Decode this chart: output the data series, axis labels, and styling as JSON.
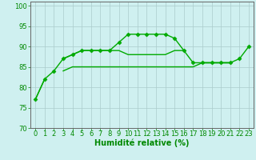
{
  "series": [
    {
      "y": [
        77,
        82,
        84,
        87,
        88,
        89,
        89,
        89,
        89,
        91,
        93,
        93,
        93,
        93,
        93,
        92,
        89,
        86,
        86,
        86,
        86,
        86,
        87,
        90
      ],
      "marker": "D",
      "color": "#00aa00",
      "linewidth": 1.0,
      "markersize": 2.5
    },
    {
      "y": [
        null,
        null,
        null,
        87,
        88,
        89,
        89,
        89,
        89,
        89,
        88,
        88,
        88,
        88,
        88,
        89,
        89,
        null,
        86,
        86,
        86,
        86,
        null,
        null
      ],
      "marker": null,
      "color": "#00aa00",
      "linewidth": 1.0
    },
    {
      "y": [
        77,
        82,
        null,
        84,
        85,
        85,
        85,
        85,
        85,
        85,
        85,
        85,
        85,
        85,
        85,
        85,
        85,
        85,
        86,
        86,
        86,
        86,
        null,
        null
      ],
      "marker": null,
      "color": "#00aa00",
      "linewidth": 1.0
    }
  ],
  "xlabel": "Humidité relative (%)",
  "xlabel_fontsize": 7,
  "xlabel_color": "#008800",
  "yticks": [
    70,
    75,
    80,
    85,
    90,
    95,
    100
  ],
  "xtick_labels": [
    "0",
    "1",
    "2",
    "3",
    "4",
    "5",
    "6",
    "7",
    "8",
    "9",
    "10",
    "11",
    "12",
    "13",
    "14",
    "15",
    "16",
    "17",
    "18",
    "19",
    "20",
    "21",
    "22",
    "23"
  ],
  "ylim": [
    70,
    101
  ],
  "xlim": [
    -0.5,
    23.5
  ],
  "bg_color": "#cff0f0",
  "grid_color": "#aacccc",
  "tick_color": "#008800",
  "tick_fontsize": 6,
  "line_color": "#00aa00"
}
